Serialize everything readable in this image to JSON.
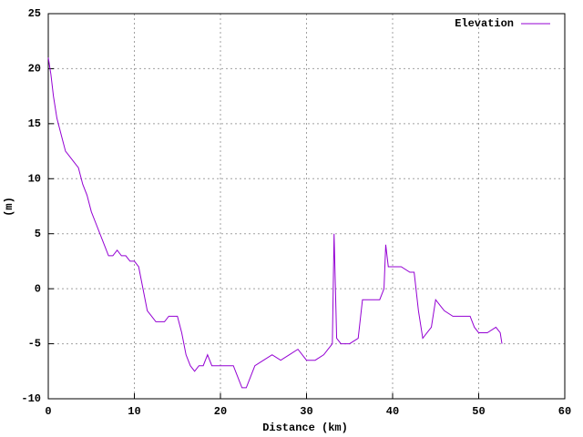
{
  "chart_data": {
    "type": "line",
    "xlabel": "Distance (km)",
    "ylabel": "(m)",
    "x": [
      0,
      0.3,
      0.6,
      1,
      1.5,
      2,
      2.5,
      3,
      3.5,
      4,
      4.5,
      5,
      5.5,
      6,
      6.5,
      7,
      7.5,
      8,
      8.5,
      9,
      9.5,
      10,
      10.5,
      11,
      11.5,
      12,
      12.5,
      13,
      13.5,
      14,
      14.5,
      15,
      15.5,
      16,
      16.5,
      17,
      17.5,
      18,
      18.5,
      19,
      19.5,
      20,
      21,
      21.5,
      22,
      22.5,
      23,
      23.5,
      24,
      25,
      26,
      27,
      28,
      29,
      30,
      31,
      32,
      32.5,
      33,
      33.2,
      33.5,
      34,
      35,
      36,
      36.5,
      37,
      38,
      38.5,
      39,
      39.2,
      39.5,
      40,
      41,
      42,
      42.5,
      43,
      43.5,
      44,
      44.5,
      45,
      45.5,
      46,
      47,
      48,
      49,
      49.5,
      50,
      51,
      52,
      52.5,
      52.7
    ],
    "series": [
      {
        "name": "Elevation",
        "color": "#9400d3",
        "values": [
          21,
          19.5,
          17.5,
          15.5,
          14,
          12.5,
          12,
          11.5,
          11,
          9.5,
          8.5,
          7,
          6,
          5,
          4,
          3,
          3,
          3.5,
          3,
          3,
          2.5,
          2.5,
          2,
          0,
          -2,
          -2.5,
          -3,
          -3,
          -3,
          -2.5,
          -2.5,
          -2.5,
          -4,
          -6,
          -7,
          -7.5,
          -7,
          -7,
          -6,
          -7,
          -7,
          -7,
          -7,
          -7,
          -8,
          -9,
          -9,
          -8,
          -7,
          -6.5,
          -6,
          -6.5,
          -6,
          -5.5,
          -6.5,
          -6.5,
          -6,
          -5.5,
          -5,
          5,
          -4.5,
          -5,
          -5,
          -4.5,
          -1,
          -1,
          -1,
          -1,
          0,
          4,
          2,
          2,
          2,
          1.5,
          1.5,
          -2,
          -4.5,
          -4,
          -3.5,
          -1,
          -1.5,
          -2,
          -2.5,
          -2.5,
          -2.5,
          -3.5,
          -4,
          -4,
          -3.5,
          -4,
          -5
        ]
      }
    ],
    "xlim": [
      0,
      60
    ],
    "xticks": [
      0,
      10,
      20,
      30,
      40,
      50,
      60
    ],
    "ylim": [
      -10,
      25
    ],
    "yticks": [
      -10,
      -5,
      0,
      5,
      10,
      15,
      20,
      25
    ],
    "grid": true,
    "legend": "top-right"
  }
}
